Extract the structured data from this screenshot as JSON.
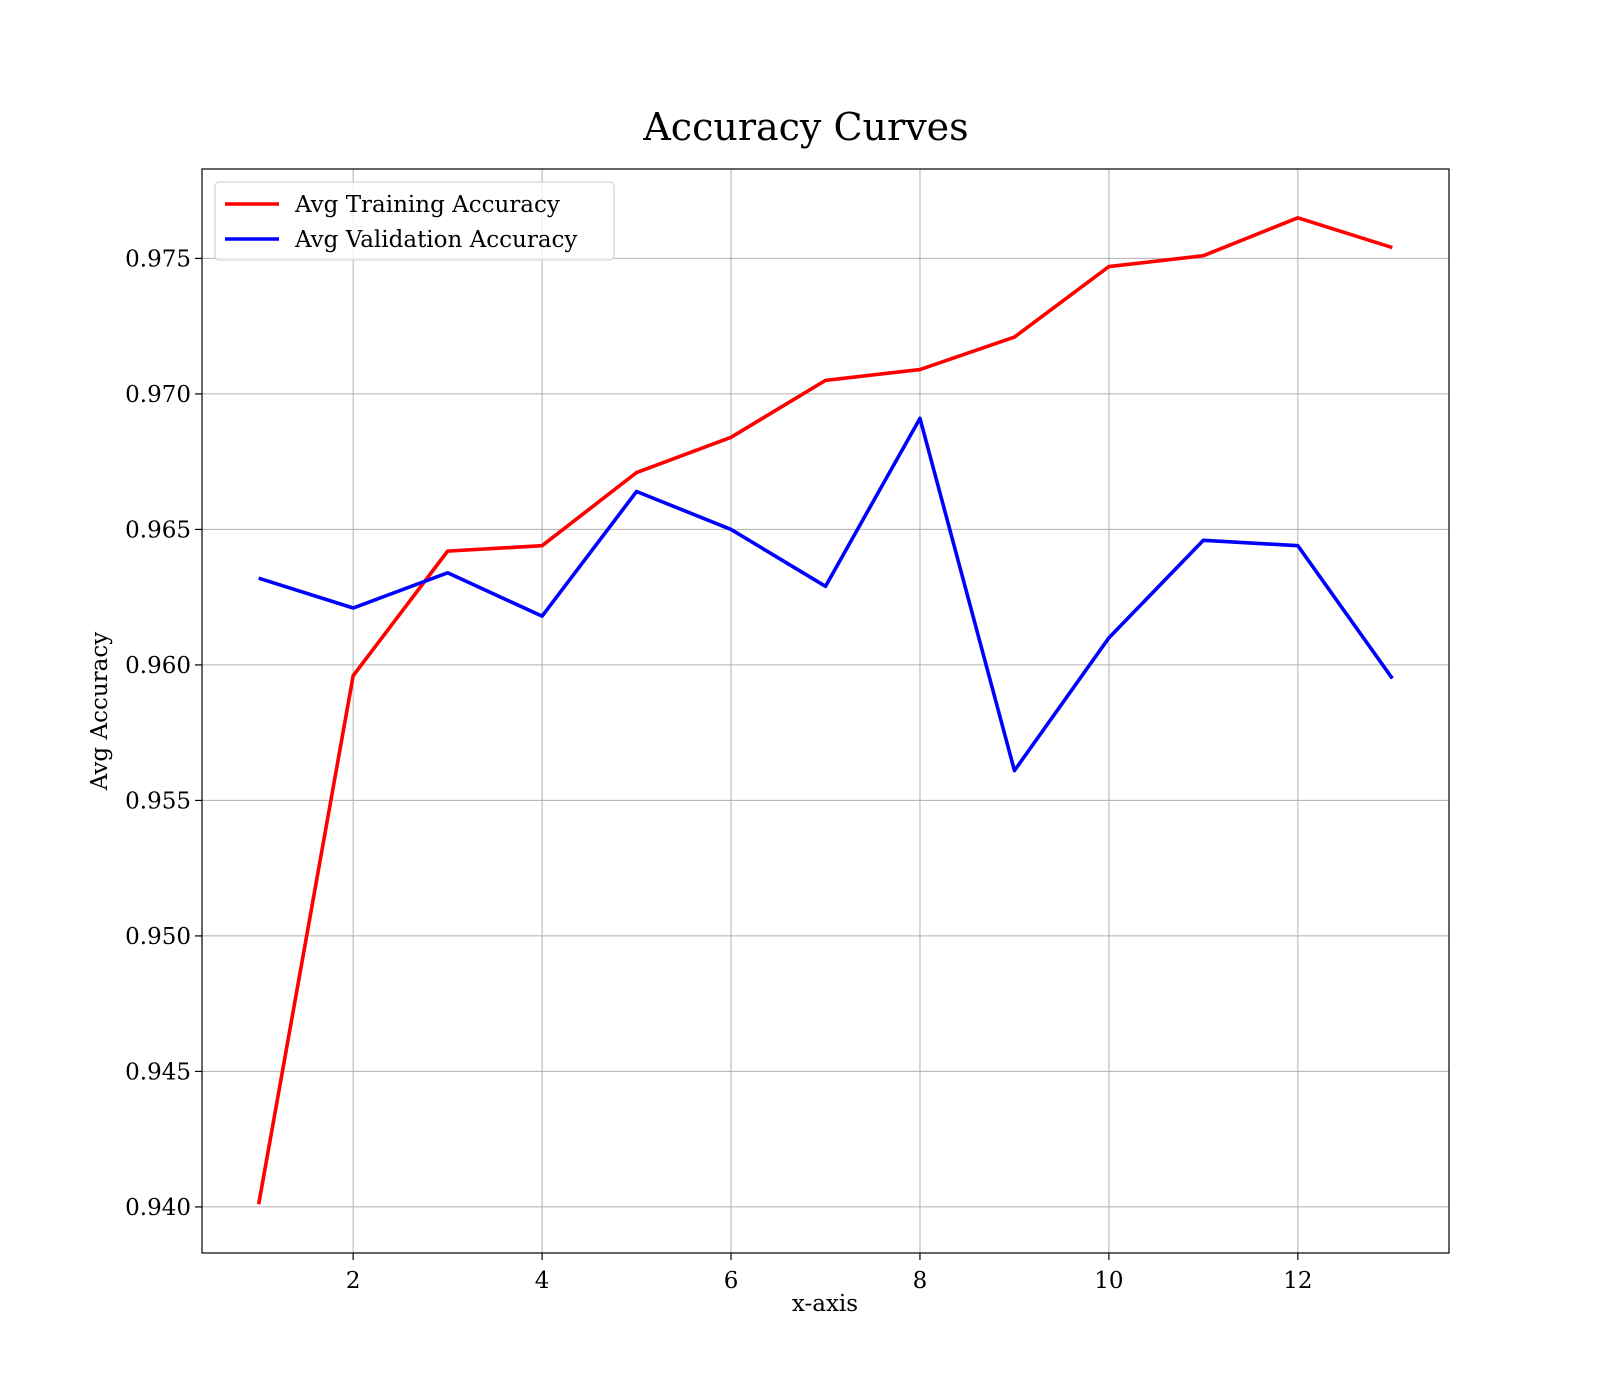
{
  "chart_data": {
    "type": "line",
    "title": "Accuracy Curves",
    "xlabel": "x-axis",
    "ylabel": "Avg Accuracy",
    "x": [
      1,
      2,
      3,
      4,
      5,
      6,
      7,
      8,
      9,
      10,
      11,
      12,
      13
    ],
    "xlim": [
      0.4,
      13.6
    ],
    "ylim": [
      0.9383,
      0.9783
    ],
    "xticks": [
      2,
      4,
      6,
      8,
      10,
      12
    ],
    "xtick_labels": [
      "2",
      "4",
      "6",
      "8",
      "10",
      "12"
    ],
    "yticks": [
      0.94,
      0.945,
      0.95,
      0.955,
      0.96,
      0.965,
      0.97,
      0.975
    ],
    "ytick_labels": [
      "0.940",
      "0.945",
      "0.950",
      "0.955",
      "0.960",
      "0.965",
      "0.970",
      "0.975"
    ],
    "grid": true,
    "legend_position": "upper-left",
    "series": [
      {
        "name": "Avg Training Accuracy",
        "color": "#ff0000",
        "values": [
          0.9401,
          0.9596,
          0.9642,
          0.9644,
          0.9671,
          0.9684,
          0.9705,
          0.9709,
          0.9721,
          0.9747,
          0.9751,
          0.9765,
          0.9754
        ]
      },
      {
        "name": "Avg Validation Accuracy",
        "color": "#0000ff",
        "values": [
          0.9632,
          0.9621,
          0.9634,
          0.9618,
          0.9664,
          0.965,
          0.9629,
          0.9691,
          0.9561,
          0.961,
          0.9646,
          0.9644,
          0.9595
        ]
      }
    ]
  }
}
